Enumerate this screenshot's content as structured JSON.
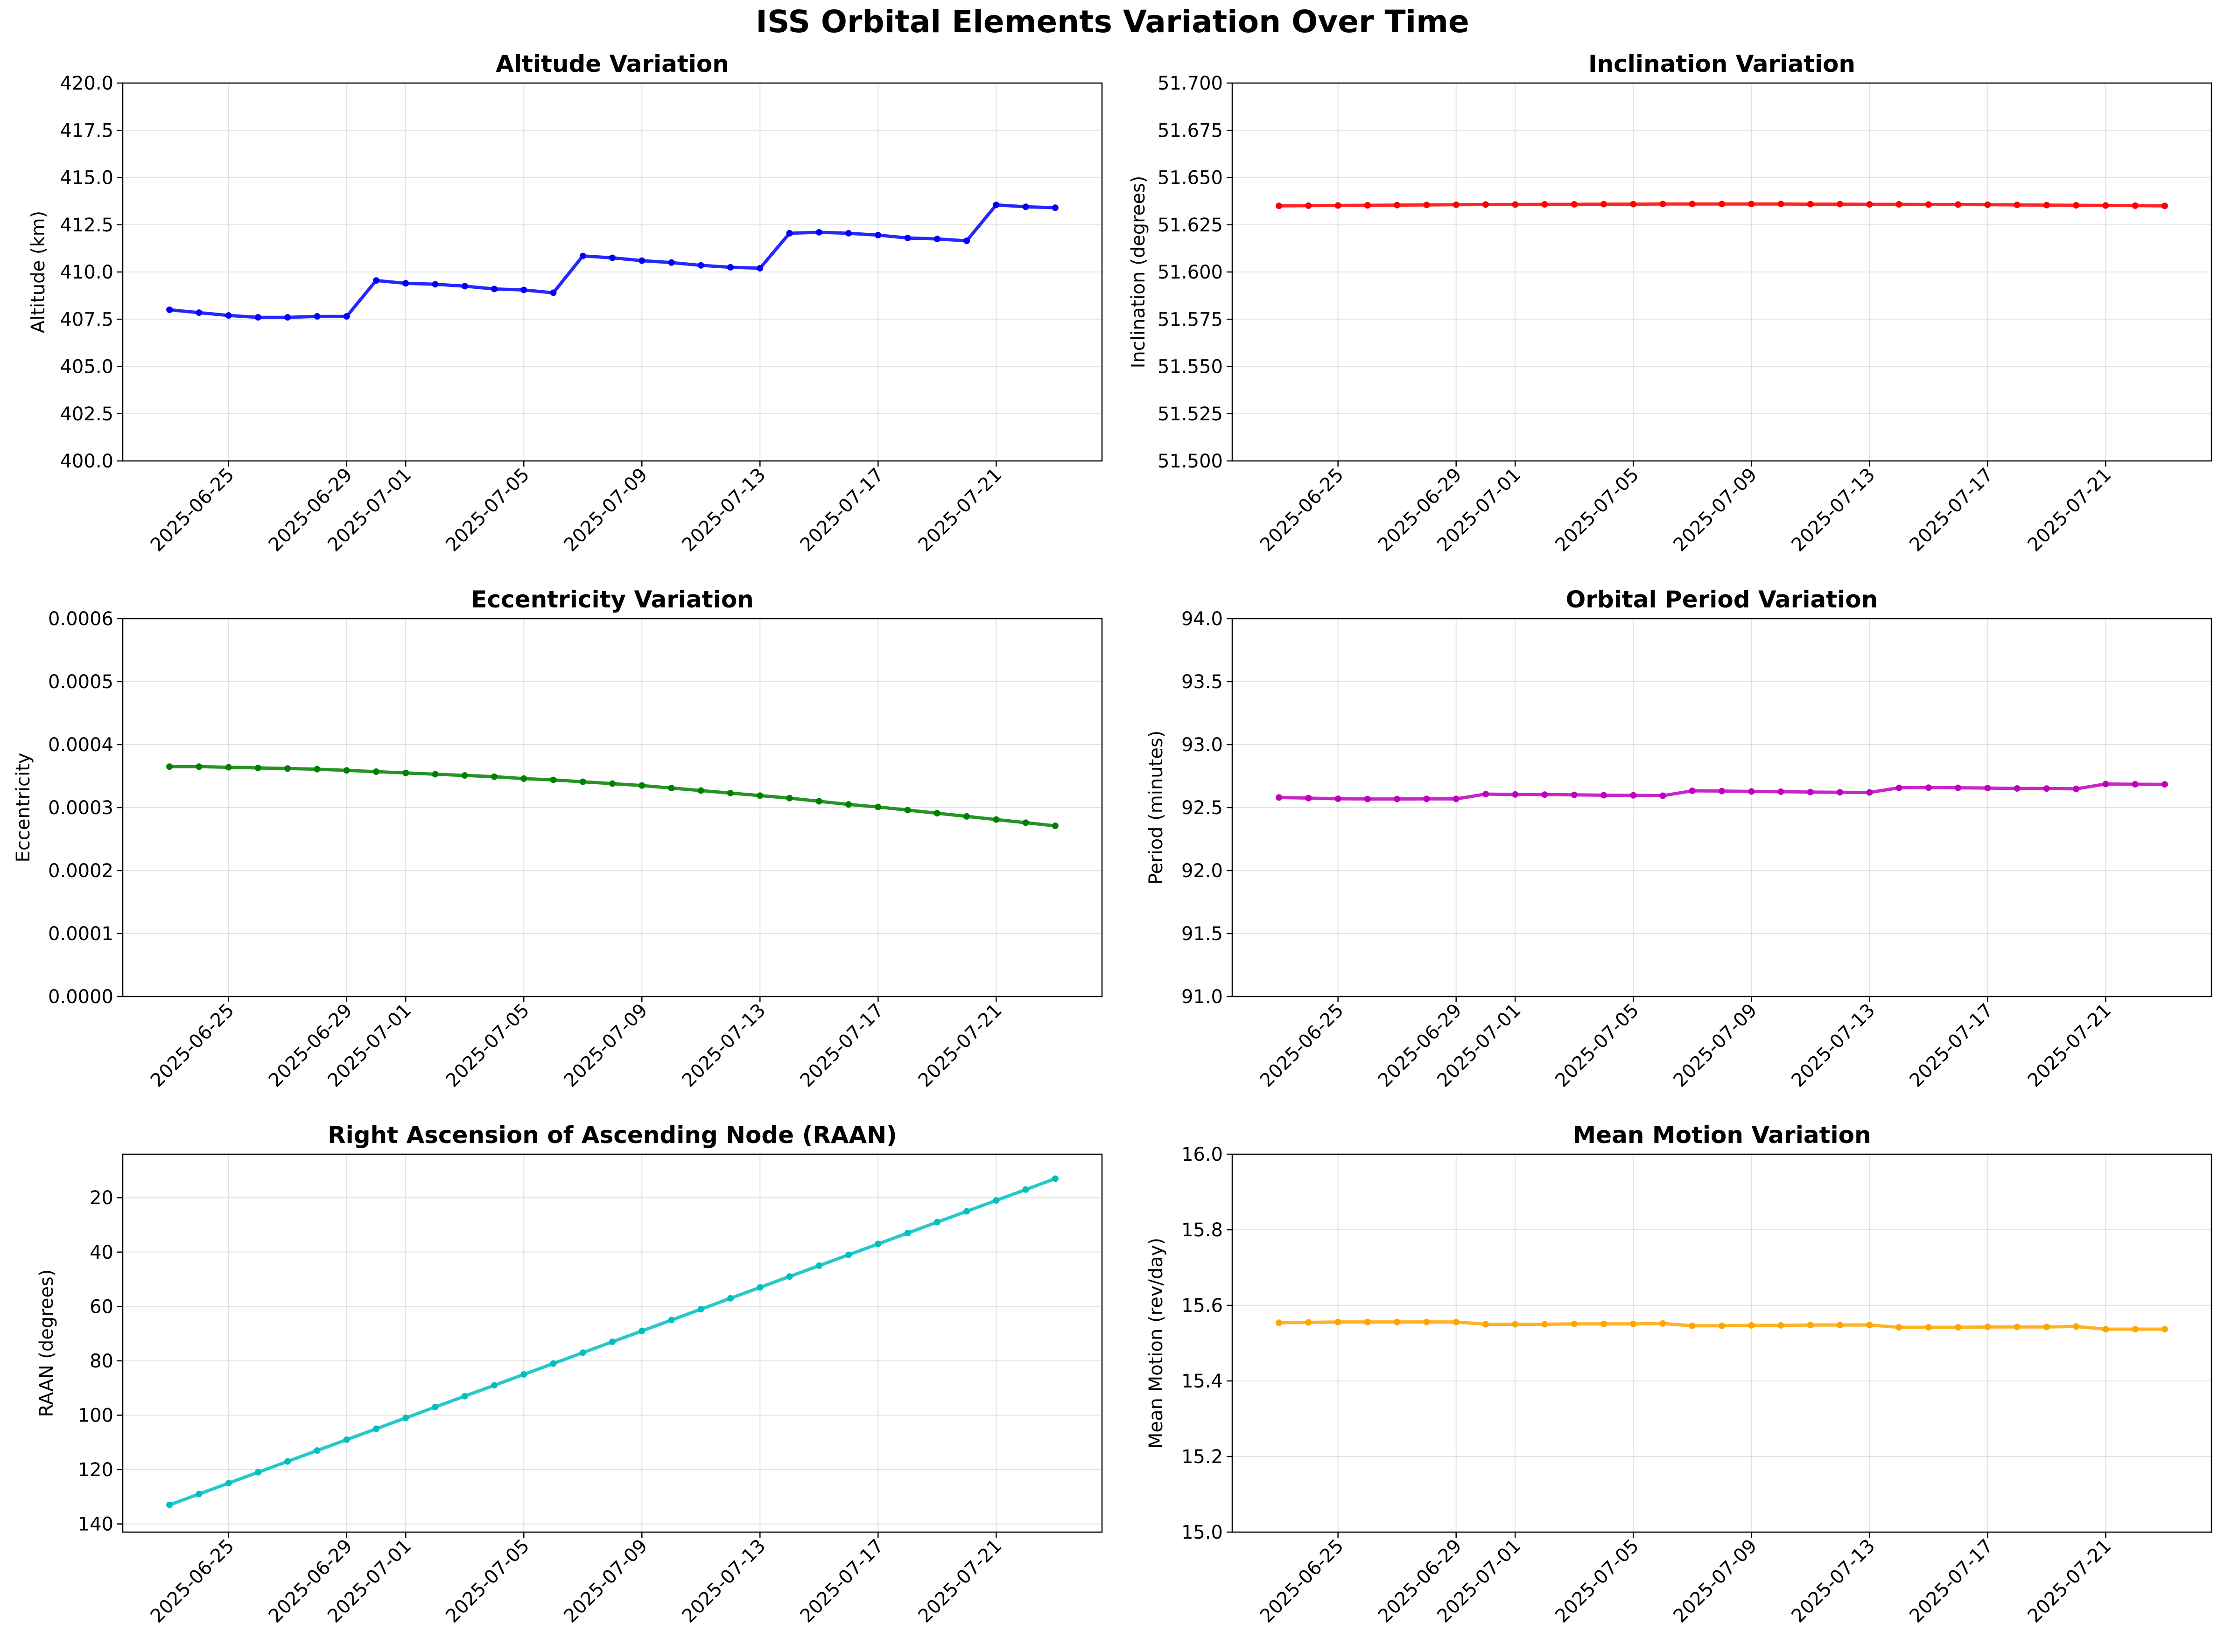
{
  "figure_title": "ISS Orbital Elements Variation Over Time",
  "chart_data": [
    {
      "type": "line",
      "title": "Altitude Variation",
      "xlabel": "",
      "ylabel": "Altitude (km)",
      "color": "#0000ff",
      "grid": true,
      "ylim": [
        400.0,
        420.0
      ],
      "y_inverted": false,
      "yticks": [
        "400.0",
        "402.5",
        "405.0",
        "407.5",
        "410.0",
        "412.5",
        "415.0",
        "417.5",
        "420.0"
      ],
      "xlim": [
        "2025-06-21T10:00",
        "2025-07-24T14:00"
      ],
      "xticks": [
        "2025-06-25",
        "2025-06-29",
        "2025-07-01",
        "2025-07-05",
        "2025-07-09",
        "2025-07-13",
        "2025-07-17",
        "2025-07-21"
      ],
      "x": [
        "2025-06-23",
        "2025-06-24",
        "2025-06-25",
        "2025-06-26",
        "2025-06-27",
        "2025-06-28",
        "2025-06-29",
        "2025-06-30",
        "2025-07-01",
        "2025-07-02",
        "2025-07-03",
        "2025-07-04",
        "2025-07-05",
        "2025-07-06",
        "2025-07-07",
        "2025-07-08",
        "2025-07-09",
        "2025-07-10",
        "2025-07-11",
        "2025-07-12",
        "2025-07-13",
        "2025-07-14",
        "2025-07-15",
        "2025-07-16",
        "2025-07-17",
        "2025-07-18",
        "2025-07-19",
        "2025-07-20",
        "2025-07-21",
        "2025-07-22",
        "2025-07-23"
      ],
      "values": [
        408.0,
        407.85,
        407.7,
        407.6,
        407.6,
        407.65,
        407.65,
        409.55,
        409.4,
        409.35,
        409.25,
        409.1,
        409.05,
        408.9,
        410.85,
        410.75,
        410.6,
        410.5,
        410.35,
        410.25,
        410.2,
        412.05,
        412.1,
        412.05,
        411.95,
        411.8,
        411.75,
        411.65,
        413.55,
        413.45,
        413.4
      ]
    },
    {
      "type": "line",
      "title": "Inclination Variation",
      "xlabel": "",
      "ylabel": "Inclination (degrees)",
      "color": "#ff0000",
      "grid": true,
      "ylim": [
        51.5,
        51.7
      ],
      "y_inverted": false,
      "yticks": [
        "51.500",
        "51.525",
        "51.550",
        "51.575",
        "51.600",
        "51.625",
        "51.650",
        "51.675",
        "51.700"
      ],
      "xlim": [
        "2025-06-21T10:00",
        "2025-07-24T14:00"
      ],
      "xticks": [
        "2025-06-25",
        "2025-06-29",
        "2025-07-01",
        "2025-07-05",
        "2025-07-09",
        "2025-07-13",
        "2025-07-17",
        "2025-07-21"
      ],
      "x": [
        "2025-06-23",
        "2025-06-24",
        "2025-06-25",
        "2025-06-26",
        "2025-06-27",
        "2025-06-28",
        "2025-06-29",
        "2025-06-30",
        "2025-07-01",
        "2025-07-02",
        "2025-07-03",
        "2025-07-04",
        "2025-07-05",
        "2025-07-06",
        "2025-07-07",
        "2025-07-08",
        "2025-07-09",
        "2025-07-10",
        "2025-07-11",
        "2025-07-12",
        "2025-07-13",
        "2025-07-14",
        "2025-07-15",
        "2025-07-16",
        "2025-07-17",
        "2025-07-18",
        "2025-07-19",
        "2025-07-20",
        "2025-07-21",
        "2025-07-22",
        "2025-07-23"
      ],
      "values": [
        51.635,
        51.6351,
        51.6352,
        51.6353,
        51.6354,
        51.6355,
        51.6356,
        51.6357,
        51.6357,
        51.6358,
        51.6358,
        51.6359,
        51.6359,
        51.636,
        51.636,
        51.636,
        51.636,
        51.636,
        51.6359,
        51.6359,
        51.6358,
        51.6358,
        51.6357,
        51.6357,
        51.6356,
        51.6355,
        51.6354,
        51.6353,
        51.6352,
        51.6351,
        51.635
      ]
    },
    {
      "type": "line",
      "title": "Eccentricity Variation",
      "xlabel": "",
      "ylabel": "Eccentricity",
      "color": "#008000",
      "grid": true,
      "ylim": [
        0.0,
        0.0006
      ],
      "y_inverted": false,
      "yticks": [
        "0.0000",
        "0.0001",
        "0.0002",
        "0.0003",
        "0.0004",
        "0.0005",
        "0.0006"
      ],
      "xlim": [
        "2025-06-21T10:00",
        "2025-07-24T14:00"
      ],
      "xticks": [
        "2025-06-25",
        "2025-06-29",
        "2025-07-01",
        "2025-07-05",
        "2025-07-09",
        "2025-07-13",
        "2025-07-17",
        "2025-07-21"
      ],
      "x": [
        "2025-06-23",
        "2025-06-24",
        "2025-06-25",
        "2025-06-26",
        "2025-06-27",
        "2025-06-28",
        "2025-06-29",
        "2025-06-30",
        "2025-07-01",
        "2025-07-02",
        "2025-07-03",
        "2025-07-04",
        "2025-07-05",
        "2025-07-06",
        "2025-07-07",
        "2025-07-08",
        "2025-07-09",
        "2025-07-10",
        "2025-07-11",
        "2025-07-12",
        "2025-07-13",
        "2025-07-14",
        "2025-07-15",
        "2025-07-16",
        "2025-07-17",
        "2025-07-18",
        "2025-07-19",
        "2025-07-20",
        "2025-07-21",
        "2025-07-22",
        "2025-07-23"
      ],
      "values": [
        0.000365,
        0.000365,
        0.000364,
        0.000363,
        0.000362,
        0.000361,
        0.000359,
        0.000357,
        0.000355,
        0.000353,
        0.000351,
        0.000349,
        0.000346,
        0.000344,
        0.000341,
        0.000338,
        0.000335,
        0.000331,
        0.000327,
        0.000323,
        0.000319,
        0.000315,
        0.00031,
        0.000305,
        0.000301,
        0.000296,
        0.000291,
        0.000286,
        0.000281,
        0.000276,
        0.000271
      ]
    },
    {
      "type": "line",
      "title": "Orbital Period Variation",
      "xlabel": "",
      "ylabel": "Period (minutes)",
      "color": "#bf00bf",
      "grid": true,
      "ylim": [
        91.0,
        94.0
      ],
      "y_inverted": false,
      "yticks": [
        "91.0",
        "91.5",
        "92.0",
        "92.5",
        "93.0",
        "93.5",
        "94.0"
      ],
      "xlim": [
        "2025-06-21T10:00",
        "2025-07-24T14:00"
      ],
      "xticks": [
        "2025-06-25",
        "2025-06-29",
        "2025-07-01",
        "2025-07-05",
        "2025-07-09",
        "2025-07-13",
        "2025-07-17",
        "2025-07-21"
      ],
      "x": [
        "2025-06-23",
        "2025-06-24",
        "2025-06-25",
        "2025-06-26",
        "2025-06-27",
        "2025-06-28",
        "2025-06-29",
        "2025-06-30",
        "2025-07-01",
        "2025-07-02",
        "2025-07-03",
        "2025-07-04",
        "2025-07-05",
        "2025-07-06",
        "2025-07-07",
        "2025-07-08",
        "2025-07-09",
        "2025-07-10",
        "2025-07-11",
        "2025-07-12",
        "2025-07-13",
        "2025-07-14",
        "2025-07-15",
        "2025-07-16",
        "2025-07-17",
        "2025-07-18",
        "2025-07-19",
        "2025-07-20",
        "2025-07-21",
        "2025-07-22",
        "2025-07-23"
      ],
      "values": [
        92.58,
        92.575,
        92.57,
        92.568,
        92.568,
        92.569,
        92.569,
        92.607,
        92.604,
        92.603,
        92.601,
        92.598,
        92.597,
        92.594,
        92.633,
        92.631,
        92.628,
        92.626,
        92.623,
        92.621,
        92.62,
        92.657,
        92.658,
        92.657,
        92.655,
        92.652,
        92.651,
        92.649,
        92.687,
        92.685,
        92.684
      ]
    },
    {
      "type": "line",
      "title": "Right Ascension of Ascending Node (RAAN)",
      "xlabel": "",
      "ylabel": "RAAN (degrees)",
      "color": "#00bfbf",
      "grid": true,
      "ylim": [
        143.0,
        4.0
      ],
      "y_inverted": true,
      "yticks": [
        "20",
        "40",
        "60",
        "80",
        "100",
        "120",
        "140"
      ],
      "xlim": [
        "2025-06-21T10:00",
        "2025-07-24T14:00"
      ],
      "xticks": [
        "2025-06-25",
        "2025-06-29",
        "2025-07-01",
        "2025-07-05",
        "2025-07-09",
        "2025-07-13",
        "2025-07-17",
        "2025-07-21"
      ],
      "x": [
        "2025-06-23",
        "2025-06-24",
        "2025-06-25",
        "2025-06-26",
        "2025-06-27",
        "2025-06-28",
        "2025-06-29",
        "2025-06-30",
        "2025-07-01",
        "2025-07-02",
        "2025-07-03",
        "2025-07-04",
        "2025-07-05",
        "2025-07-06",
        "2025-07-07",
        "2025-07-08",
        "2025-07-09",
        "2025-07-10",
        "2025-07-11",
        "2025-07-12",
        "2025-07-13",
        "2025-07-14",
        "2025-07-15",
        "2025-07-16",
        "2025-07-17",
        "2025-07-18",
        "2025-07-19",
        "2025-07-20",
        "2025-07-21",
        "2025-07-22",
        "2025-07-23"
      ],
      "values": [
        133.0,
        129.0,
        125.0,
        121.0,
        117.0,
        113.0,
        109.0,
        105.0,
        101.0,
        97.0,
        93.0,
        89.0,
        85.0,
        81.0,
        77.0,
        73.0,
        69.0,
        65.0,
        61.0,
        57.0,
        53.0,
        49.0,
        45.0,
        41.0,
        37.0,
        33.0,
        29.0,
        25.0,
        21.0,
        17.0,
        13.0
      ]
    },
    {
      "type": "line",
      "title": "Mean Motion Variation",
      "xlabel": "",
      "ylabel": "Mean Motion (rev/day)",
      "color": "#ffa500",
      "grid": true,
      "ylim": [
        15.0,
        16.0
      ],
      "y_inverted": false,
      "yticks": [
        "15.0",
        "15.2",
        "15.4",
        "15.6",
        "15.8",
        "16.0"
      ],
      "xlim": [
        "2025-06-21T10:00",
        "2025-07-24T14:00"
      ],
      "xticks": [
        "2025-06-25",
        "2025-06-29",
        "2025-07-01",
        "2025-07-05",
        "2025-07-09",
        "2025-07-13",
        "2025-07-17",
        "2025-07-21"
      ],
      "x": [
        "2025-06-23",
        "2025-06-24",
        "2025-06-25",
        "2025-06-26",
        "2025-06-27",
        "2025-06-28",
        "2025-06-29",
        "2025-06-30",
        "2025-07-01",
        "2025-07-02",
        "2025-07-03",
        "2025-07-04",
        "2025-07-05",
        "2025-07-06",
        "2025-07-07",
        "2025-07-08",
        "2025-07-09",
        "2025-07-10",
        "2025-07-11",
        "2025-07-12",
        "2025-07-13",
        "2025-07-14",
        "2025-07-15",
        "2025-07-16",
        "2025-07-17",
        "2025-07-18",
        "2025-07-19",
        "2025-07-20",
        "2025-07-21",
        "2025-07-22",
        "2025-07-23"
      ],
      "values": [
        15.554,
        15.555,
        15.556,
        15.556,
        15.556,
        15.556,
        15.556,
        15.55,
        15.55,
        15.55,
        15.551,
        15.551,
        15.551,
        15.552,
        15.546,
        15.546,
        15.547,
        15.547,
        15.548,
        15.548,
        15.548,
        15.542,
        15.542,
        15.542,
        15.543,
        15.543,
        15.543,
        15.544,
        15.537,
        15.537,
        15.537
      ]
    }
  ]
}
